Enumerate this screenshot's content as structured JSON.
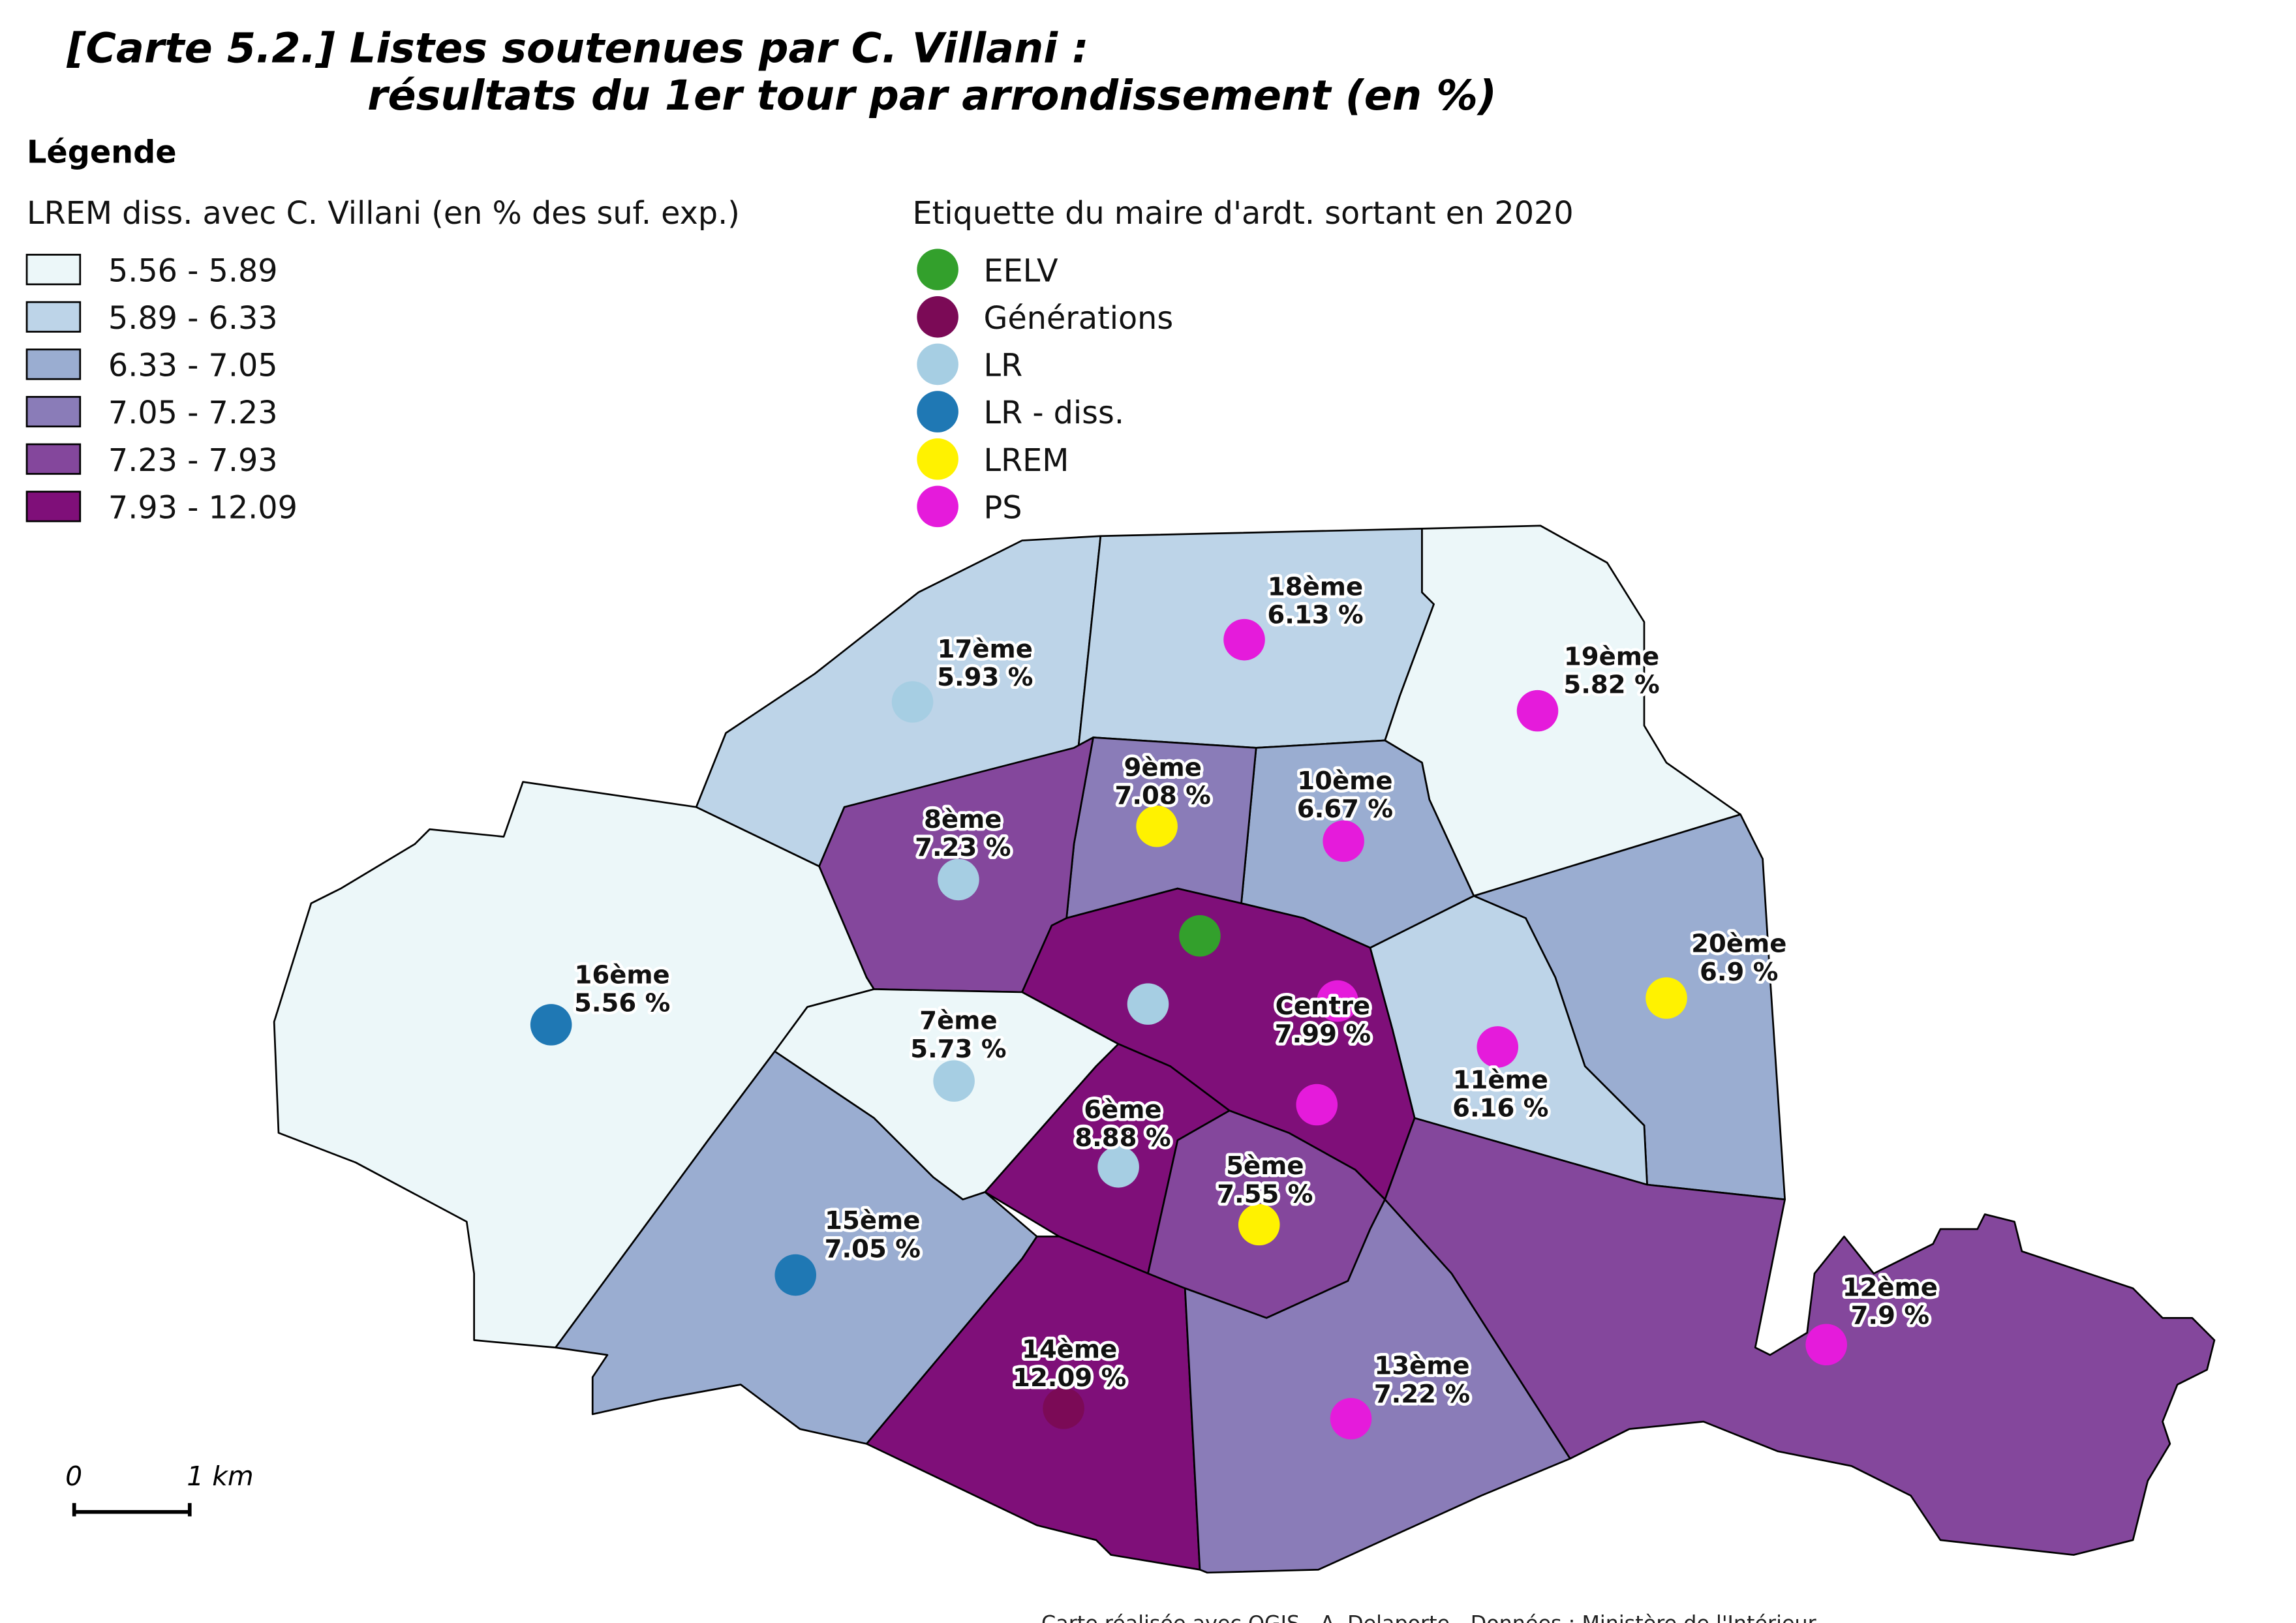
{
  "title": {
    "line1": "[Carte 5.2.] Listes soutenues par C. Villani :",
    "line2": "résultats du 1er tour par arrondissement (en %)"
  },
  "legend": {
    "heading": "Légende",
    "choropleth_title": "LREM diss. avec C. Villani (en % des suf. exp.)",
    "classes": [
      {
        "label": "5.56 - 5.89",
        "color": "#ecf7f9"
      },
      {
        "label": "5.89 - 6.33",
        "color": "#bdd4e8"
      },
      {
        "label": "6.33 - 7.05",
        "color": "#9aadd1"
      },
      {
        "label": "7.05 - 7.23",
        "color": "#8a7cb8"
      },
      {
        "label": "7.23 - 7.93",
        "color": "#84479c"
      },
      {
        "label": "7.93 - 12.09",
        "color": "#7f0f79"
      }
    ],
    "mayor_title": "Etiquette du maire d'ardt. sortant en 2020",
    "mayors": [
      {
        "label": "EELV",
        "color": "#33a02c"
      },
      {
        "label": "Générations",
        "color": "#7b0a56"
      },
      {
        "label": "LR",
        "color": "#a6cee3"
      },
      {
        "label": "LR - diss.",
        "color": "#1f78b4"
      },
      {
        "label": "LREM",
        "color": "#fff200"
      },
      {
        "label": "PS",
        "color": "#e51bdb"
      }
    ]
  },
  "map": {
    "arrondissements": [
      {
        "name": "16ème",
        "value_label": "5.56 %",
        "value": 5.56,
        "class": 0,
        "mayor": "LR - diss."
      },
      {
        "name": "17ème",
        "value_label": "5.93 %",
        "value": 5.93,
        "class": 1,
        "mayor": "LR"
      },
      {
        "name": "18ème",
        "value_label": "6.13 %",
        "value": 6.13,
        "class": 1,
        "mayor": "PS"
      },
      {
        "name": "19ème",
        "value_label": "5.82 %",
        "value": 5.82,
        "class": 0,
        "mayor": "PS"
      },
      {
        "name": "20ème",
        "value_label": "6.9 %",
        "value": 6.9,
        "class": 2,
        "mayor": "LREM"
      },
      {
        "name": "11ème",
        "value_label": "6.16 %",
        "value": 6.16,
        "class": 1,
        "mayor": "PS"
      },
      {
        "name": "10ème",
        "value_label": "6.67 %",
        "value": 6.67,
        "class": 2,
        "mayor": "PS"
      },
      {
        "name": "9ème",
        "value_label": "7.08 %",
        "value": 7.08,
        "class": 3,
        "mayor": "LREM"
      },
      {
        "name": "8ème",
        "value_label": "7.23 %",
        "value": 7.23,
        "class": 4,
        "mayor": "LR"
      },
      {
        "name": "Centre",
        "value_label": "7.99 %",
        "value": 7.99,
        "class": 5,
        "mayor": [
          "EELV",
          "LR",
          "PS",
          "PS"
        ]
      },
      {
        "name": "7ème",
        "value_label": "5.73 %",
        "value": 5.73,
        "class": 0,
        "mayor": "LR"
      },
      {
        "name": "15ème",
        "value_label": "7.05 %",
        "value": 7.05,
        "class": 2,
        "mayor": "LR - diss."
      },
      {
        "name": "6ème",
        "value_label": "8.88 %",
        "value": 8.88,
        "class": 5,
        "mayor": "LR"
      },
      {
        "name": "5ème",
        "value_label": "7.55 %",
        "value": 7.55,
        "class": 4,
        "mayor": "LREM"
      },
      {
        "name": "14ème",
        "value_label": "12.09 %",
        "value": 12.09,
        "class": 5,
        "mayor": "Générations"
      },
      {
        "name": "13ème",
        "value_label": "7.22 %",
        "value": 7.22,
        "class": 3,
        "mayor": "PS"
      },
      {
        "name": "12ème",
        "value_label": "7.9 %",
        "value": 7.9,
        "class": 4,
        "mayor": "PS"
      }
    ]
  },
  "scale_bar": {
    "start": "0",
    "end": "1 km"
  },
  "footer": "Carte réalisée avec QGIS - A. Delaporte - Données : Ministère de l'Intérieur"
}
